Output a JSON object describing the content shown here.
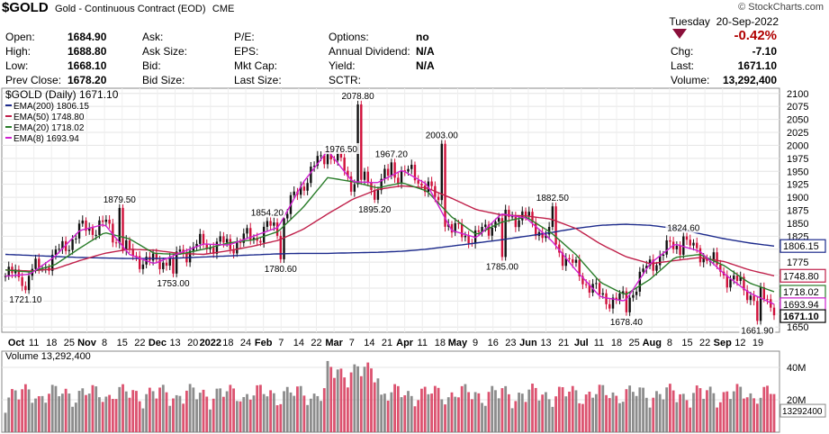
{
  "header": {
    "symbol": "$GOLD",
    "description": "Gold - Continuous Contract (EOD)",
    "exchange": "CME",
    "watermark": "© StockCharts.com",
    "day": "Tuesday",
    "date": "20-Sep-2022",
    "change_pct": "-0.42%",
    "down_color": "#b00000"
  },
  "quote_left": [
    {
      "label": "Open:",
      "value": "1684.90"
    },
    {
      "label": "High:",
      "value": "1688.80"
    },
    {
      "label": "Low:",
      "value": "1668.10"
    },
    {
      "label": "Prev Close:",
      "value": "1678.20"
    }
  ],
  "quote_mid": [
    {
      "label": "Ask:",
      "value": ""
    },
    {
      "label": "Ask Size:",
      "value": ""
    },
    {
      "label": "Bid:",
      "value": ""
    },
    {
      "label": "Bid Size:",
      "value": ""
    }
  ],
  "quote_mid2": [
    {
      "label": "P/E:",
      "value": ""
    },
    {
      "label": "EPS:",
      "value": ""
    },
    {
      "label": "Mkt Cap:",
      "value": ""
    },
    {
      "label": "Last Size:",
      "value": ""
    }
  ],
  "quote_mid3": [
    {
      "label": "Options:",
      "value": "no"
    },
    {
      "label": "Annual Dividend:",
      "value": "N/A"
    },
    {
      "label": "Yield:",
      "value": "N/A"
    },
    {
      "label": "SCTR:",
      "value": ""
    }
  ],
  "quote_right": [
    {
      "label": "Chg:",
      "value": "-7.10"
    },
    {
      "label": "Last:",
      "value": "1671.10"
    },
    {
      "label": "Volume:",
      "value": "13,292,400"
    }
  ],
  "legend": {
    "price": "$GOLD (Daily) 1671.10",
    "ema200": "EMA(200) 1806.15",
    "ema50": "EMA(50) 1748.80",
    "ema20": "EMA(20) 1718.02",
    "ema8": "EMA(8) 1693.94",
    "volume": "Volume 13,292,400"
  },
  "chart_data": {
    "type": "line",
    "title": "$GOLD (Daily) 1671.10",
    "y_ticks": [
      1650,
      1675,
      1700,
      1725,
      1750,
      1775,
      1800,
      1825,
      1850,
      1875,
      1900,
      1925,
      1950,
      1975,
      2000,
      2025,
      2050,
      2075,
      2100
    ],
    "ylim": [
      1640,
      2110
    ],
    "x_tick_labels": [
      "Oct",
      "11",
      "18",
      "25",
      "Nov",
      "8",
      "15",
      "22",
      "Dec",
      "13",
      "20",
      "2022",
      "18",
      "24",
      "Feb",
      "7",
      "14",
      "22",
      "Mar",
      "7",
      "14",
      "21",
      "Apr",
      "11",
      "18",
      "May",
      "9",
      "16",
      "23",
      "Jun",
      "13",
      "21",
      "Jul",
      "11",
      "18",
      "25",
      "Aug",
      "8",
      "15",
      "22",
      "Sep",
      "12",
      "19"
    ],
    "annotations": [
      {
        "label": "1721.10",
        "value": 1721.1,
        "i": 6
      },
      {
        "label": "1879.50",
        "value": 1879.5,
        "i": 34
      },
      {
        "label": "1753.00",
        "value": 1753.0,
        "i": 50
      },
      {
        "label": "1854.20",
        "value": 1854.2,
        "i": 78
      },
      {
        "label": "1780.60",
        "value": 1780.6,
        "i": 82
      },
      {
        "label": "1976.50",
        "value": 1976.5,
        "i": 100
      },
      {
        "label": "2078.80",
        "value": 2078.8,
        "i": 105
      },
      {
        "label": "1895.20",
        "value": 1895.2,
        "i": 110
      },
      {
        "label": "1967.20",
        "value": 1967.2,
        "i": 115
      },
      {
        "label": "2003.00",
        "value": 2003.0,
        "i": 130
      },
      {
        "label": "1785.00",
        "value": 1785.0,
        "i": 148
      },
      {
        "label": "1882.50",
        "value": 1882.5,
        "i": 163
      },
      {
        "label": "1678.40",
        "value": 1678.4,
        "i": 185
      },
      {
        "label": "1824.60",
        "value": 1824.6,
        "i": 202
      },
      {
        "label": "1661.90",
        "value": 1661.9,
        "i": 224
      }
    ],
    "right_badges": [
      {
        "label": "1806.15",
        "value": 1806.15,
        "color": "#1c2a8c"
      },
      {
        "label": "1748.80",
        "value": 1748.8,
        "color": "#c0204a"
      },
      {
        "label": "1718.02",
        "value": 1718.02,
        "color": "#2a7d2a"
      },
      {
        "label": "1693.94",
        "value": 1693.94,
        "color": "#d020d0"
      },
      {
        "label": "1671.10",
        "value": 1671.1,
        "color": "#000000"
      }
    ],
    "series": [
      {
        "name": "EMA(200)",
        "color": "#1c2a8c",
        "values": [
          1790,
          1788,
          1786,
          1784,
          1783,
          1782,
          1782,
          1783,
          1785,
          1787,
          1789,
          1791,
          1792,
          1792,
          1793,
          1794,
          1796,
          1800,
          1806,
          1812,
          1818,
          1825,
          1832,
          1840,
          1846,
          1848,
          1846,
          1840,
          1830,
          1820,
          1812,
          1806
        ]
      },
      {
        "name": "EMA(50)",
        "color": "#c0204a",
        "values": [
          1760,
          1758,
          1762,
          1778,
          1792,
          1800,
          1798,
          1792,
          1790,
          1797,
          1806,
          1817,
          1838,
          1868,
          1896,
          1915,
          1922,
          1918,
          1898,
          1876,
          1866,
          1864,
          1858,
          1840,
          1810,
          1786,
          1772,
          1778,
          1784,
          1776,
          1760,
          1748.8
        ]
      },
      {
        "name": "EMA(20)",
        "color": "#2a7d2a",
        "values": [
          1760,
          1756,
          1770,
          1802,
          1832,
          1820,
          1792,
          1790,
          1800,
          1812,
          1818,
          1834,
          1880,
          1938,
          1930,
          1918,
          1928,
          1912,
          1862,
          1828,
          1852,
          1862,
          1832,
          1790,
          1736,
          1712,
          1742,
          1784,
          1790,
          1768,
          1735,
          1718.02
        ]
      },
      {
        "name": "EMA(8)",
        "color": "#d020d0",
        "values": [
          1748,
          1752,
          1786,
          1836,
          1848,
          1790,
          1772,
          1792,
          1810,
          1808,
          1825,
          1842,
          1928,
          1990,
          1930,
          1928,
          1952,
          1925,
          1836,
          1822,
          1868,
          1860,
          1818,
          1760,
          1708,
          1700,
          1772,
          1810,
          1796,
          1752,
          1716,
          1693.94
        ]
      }
    ],
    "volume": {
      "label": "Volume 13,292,400",
      "y_ticks": [
        "40M",
        "20M"
      ],
      "last_badge": "13292400",
      "ylim": [
        0,
        50
      ],
      "unit": "M"
    }
  }
}
